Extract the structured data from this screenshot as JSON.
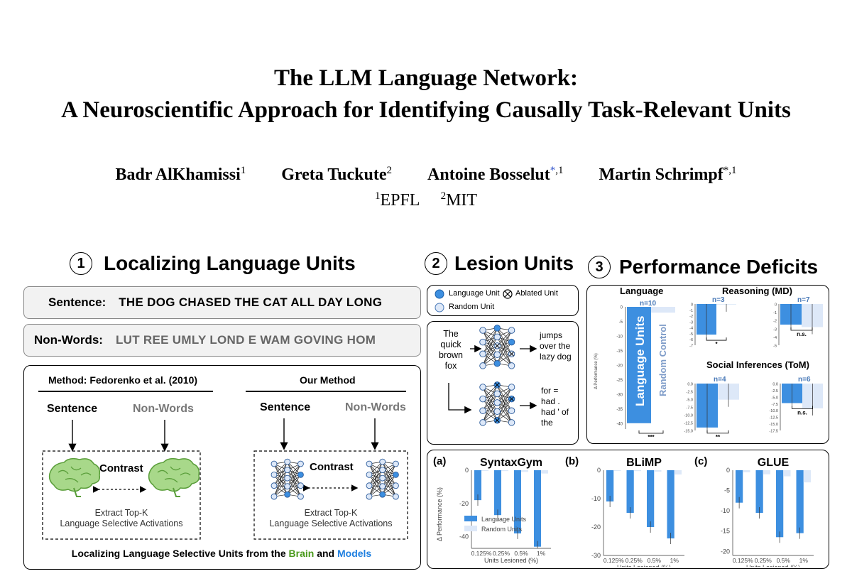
{
  "title": {
    "line1": "The LLM Language Network:",
    "line2": "A Neuroscientific Approach for Identifying Causally Task-Relevant Units"
  },
  "authors": [
    {
      "name": "Badr AlKhamissi",
      "sup": "1"
    },
    {
      "name": "Greta Tuckute",
      "sup": "2"
    },
    {
      "name": "Antoine Bosselut",
      "star": "*",
      "sup": ",1"
    },
    {
      "name": "Martin Schrimpf",
      "star": "*",
      "sup": ",1"
    }
  ],
  "affiliations": [
    {
      "sup": "1",
      "name": "EPFL"
    },
    {
      "sup": "2",
      "name": "MIT"
    }
  ],
  "section1": {
    "number": "1",
    "title": "Localizing Language Units",
    "sentence_label": "Sentence:",
    "sentence_value": "THE DOG CHASED THE CAT ALL DAY LONG",
    "nonwords_label": "Non-Words:",
    "nonwords_value": "LUT REE UMLY LOND E WAM GOVING HOM",
    "method_left": "Method: Fedorenko et al. (2010)",
    "method_right": "Our Method",
    "sentence": "Sentence",
    "nonwords": "Non-Words",
    "contrast": "Contrast",
    "extract_line1": "Extract Top-K",
    "extract_line2": "Language Selective Activations",
    "caption_prefix": "Localizing Language Selective Units from the ",
    "caption_brain": "Brain",
    "caption_and": " and ",
    "caption_models": "Models"
  },
  "section2": {
    "number": "2",
    "title": "Lesion Units",
    "legend_language": "Language Unit",
    "legend_ablated": "Ablated Unit",
    "legend_random": "Random Unit",
    "input_text": [
      "The",
      "quick",
      "brown",
      "fox"
    ],
    "output_top": [
      "jumps",
      "over the",
      "lazy dog"
    ],
    "output_bottom": [
      "for =",
      "had .",
      "had ' of",
      "the"
    ]
  },
  "section3": {
    "number": "3",
    "title": "Performance Deficits",
    "language_title": "Language",
    "reasoning_title": "Reasoning (MD)",
    "social_title": "Social Inferences (ToM)",
    "ylabel": "Δ Performance (%)",
    "bar_label_language": "Language Units",
    "bar_label_random": "Random Control",
    "lang_n": "n=10",
    "reason_n1": "n=3",
    "reason_n2": "n=7",
    "social_n1": "n=4",
    "social_n2": "n=6",
    "sig_lang": "***",
    "sig_reason1": "*",
    "sig_reason2": "n.s.",
    "sig_social1": "**",
    "sig_social2": "n.s."
  },
  "bottom": {
    "panels": [
      {
        "letter": "(a)",
        "name": "SyntaxGym"
      },
      {
        "letter": "(b)",
        "name": "BLiMP"
      },
      {
        "letter": "(c)",
        "name": "GLUE"
      }
    ],
    "ylabel": "Δ Performance (%)",
    "xlabel": "Units Lesioned (%)",
    "legend_language": "Language Units",
    "legend_random": "Random Units"
  },
  "colors": {
    "language": "#3d8fe0",
    "random": "#dde8f8",
    "brain_green": "#4a9a1c",
    "models_blue": "#1e7fe0"
  },
  "chart_data": [
    {
      "type": "bar",
      "title": "Language",
      "categories": [
        "Language Units",
        "Random Control"
      ],
      "values": [
        -40,
        -2
      ],
      "n": "n=10",
      "yticks": [
        "0",
        "-5",
        "-10",
        "-15",
        "-20",
        "-25",
        "-30",
        "-35",
        "-40"
      ],
      "ylim": [
        -42,
        0
      ]
    },
    {
      "type": "bar",
      "title": "Reasoning (MD)",
      "categories": [
        "Language Units",
        "Random Control"
      ],
      "subplots": [
        {
          "n": "n=3",
          "values": [
            -5.2,
            -0.1
          ],
          "yticks": [
            "0",
            "-1",
            "-2",
            "-3",
            "-4",
            "-5",
            "-6",
            "-7"
          ],
          "ylim": [
            -7,
            0
          ]
        },
        {
          "n": "n=7",
          "values": [
            -2.5,
            -2.8
          ],
          "yticks": [
            "0",
            "-1",
            "-2",
            "-3",
            "-4",
            "-5"
          ],
          "ylim": [
            -5,
            0
          ]
        }
      ]
    },
    {
      "type": "bar",
      "title": "Social Inferences (ToM)",
      "categories": [
        "Language Units",
        "Random Control"
      ],
      "subplots": [
        {
          "n": "n=4",
          "values": [
            -15,
            -5.5
          ],
          "yticks": [
            "0.0",
            "-2.5",
            "-5.0",
            "-7.5",
            "-10.0",
            "-12.5",
            "-15.0"
          ],
          "ylim": [
            -16,
            0
          ]
        },
        {
          "n": "n=6",
          "values": [
            -7.5,
            -9.5
          ],
          "yticks": [
            "0.0",
            "-2.5",
            "-5.0",
            "-7.5",
            "-10.0",
            "-12.5",
            "-15.0",
            "-17.5"
          ],
          "ylim": [
            -18,
            0
          ]
        }
      ]
    },
    {
      "type": "bar",
      "title": "SyntaxGym",
      "categories": [
        "0.125%",
        "0.25%",
        "0.5%",
        "1%"
      ],
      "series": [
        {
          "name": "Language Units",
          "values": [
            -18,
            -27,
            -38,
            -46
          ]
        },
        {
          "name": "Random Units",
          "values": [
            -0.3,
            -0.5,
            -1,
            -2
          ]
        }
      ],
      "yticks": [
        "0",
        "-20",
        "-40"
      ],
      "ylim": [
        -47,
        0
      ],
      "ylabel": "Δ Performance (%)",
      "xlabel": "Units Lesioned (%)"
    },
    {
      "type": "bar",
      "title": "BLiMP",
      "categories": [
        "0.125%",
        "0.25%",
        "0.5%",
        "1%"
      ],
      "series": [
        {
          "name": "Language Units",
          "values": [
            -11,
            -15,
            -20,
            -24
          ]
        },
        {
          "name": "Random Units",
          "values": [
            -0.2,
            -0.3,
            -0.5,
            -1.5
          ]
        }
      ],
      "yticks": [
        "0",
        "-10",
        "-20",
        "-30"
      ],
      "ylim": [
        -30,
        0
      ],
      "xlabel": "Units Lesioned (%)"
    },
    {
      "type": "bar",
      "title": "GLUE",
      "categories": [
        "0.125%",
        "0.25%",
        "0.5%",
        "1%"
      ],
      "series": [
        {
          "name": "Language Units",
          "values": [
            -8,
            -10.5,
            -16.5,
            -15.5
          ]
        },
        {
          "name": "Random Units",
          "values": [
            -0.5,
            -1,
            -1.5,
            -3
          ]
        }
      ],
      "yticks": [
        "0",
        "-5",
        "-10",
        "-15",
        "-20"
      ],
      "ylim": [
        -21,
        0
      ],
      "xlabel": "Units Lesioned (%)"
    }
  ]
}
